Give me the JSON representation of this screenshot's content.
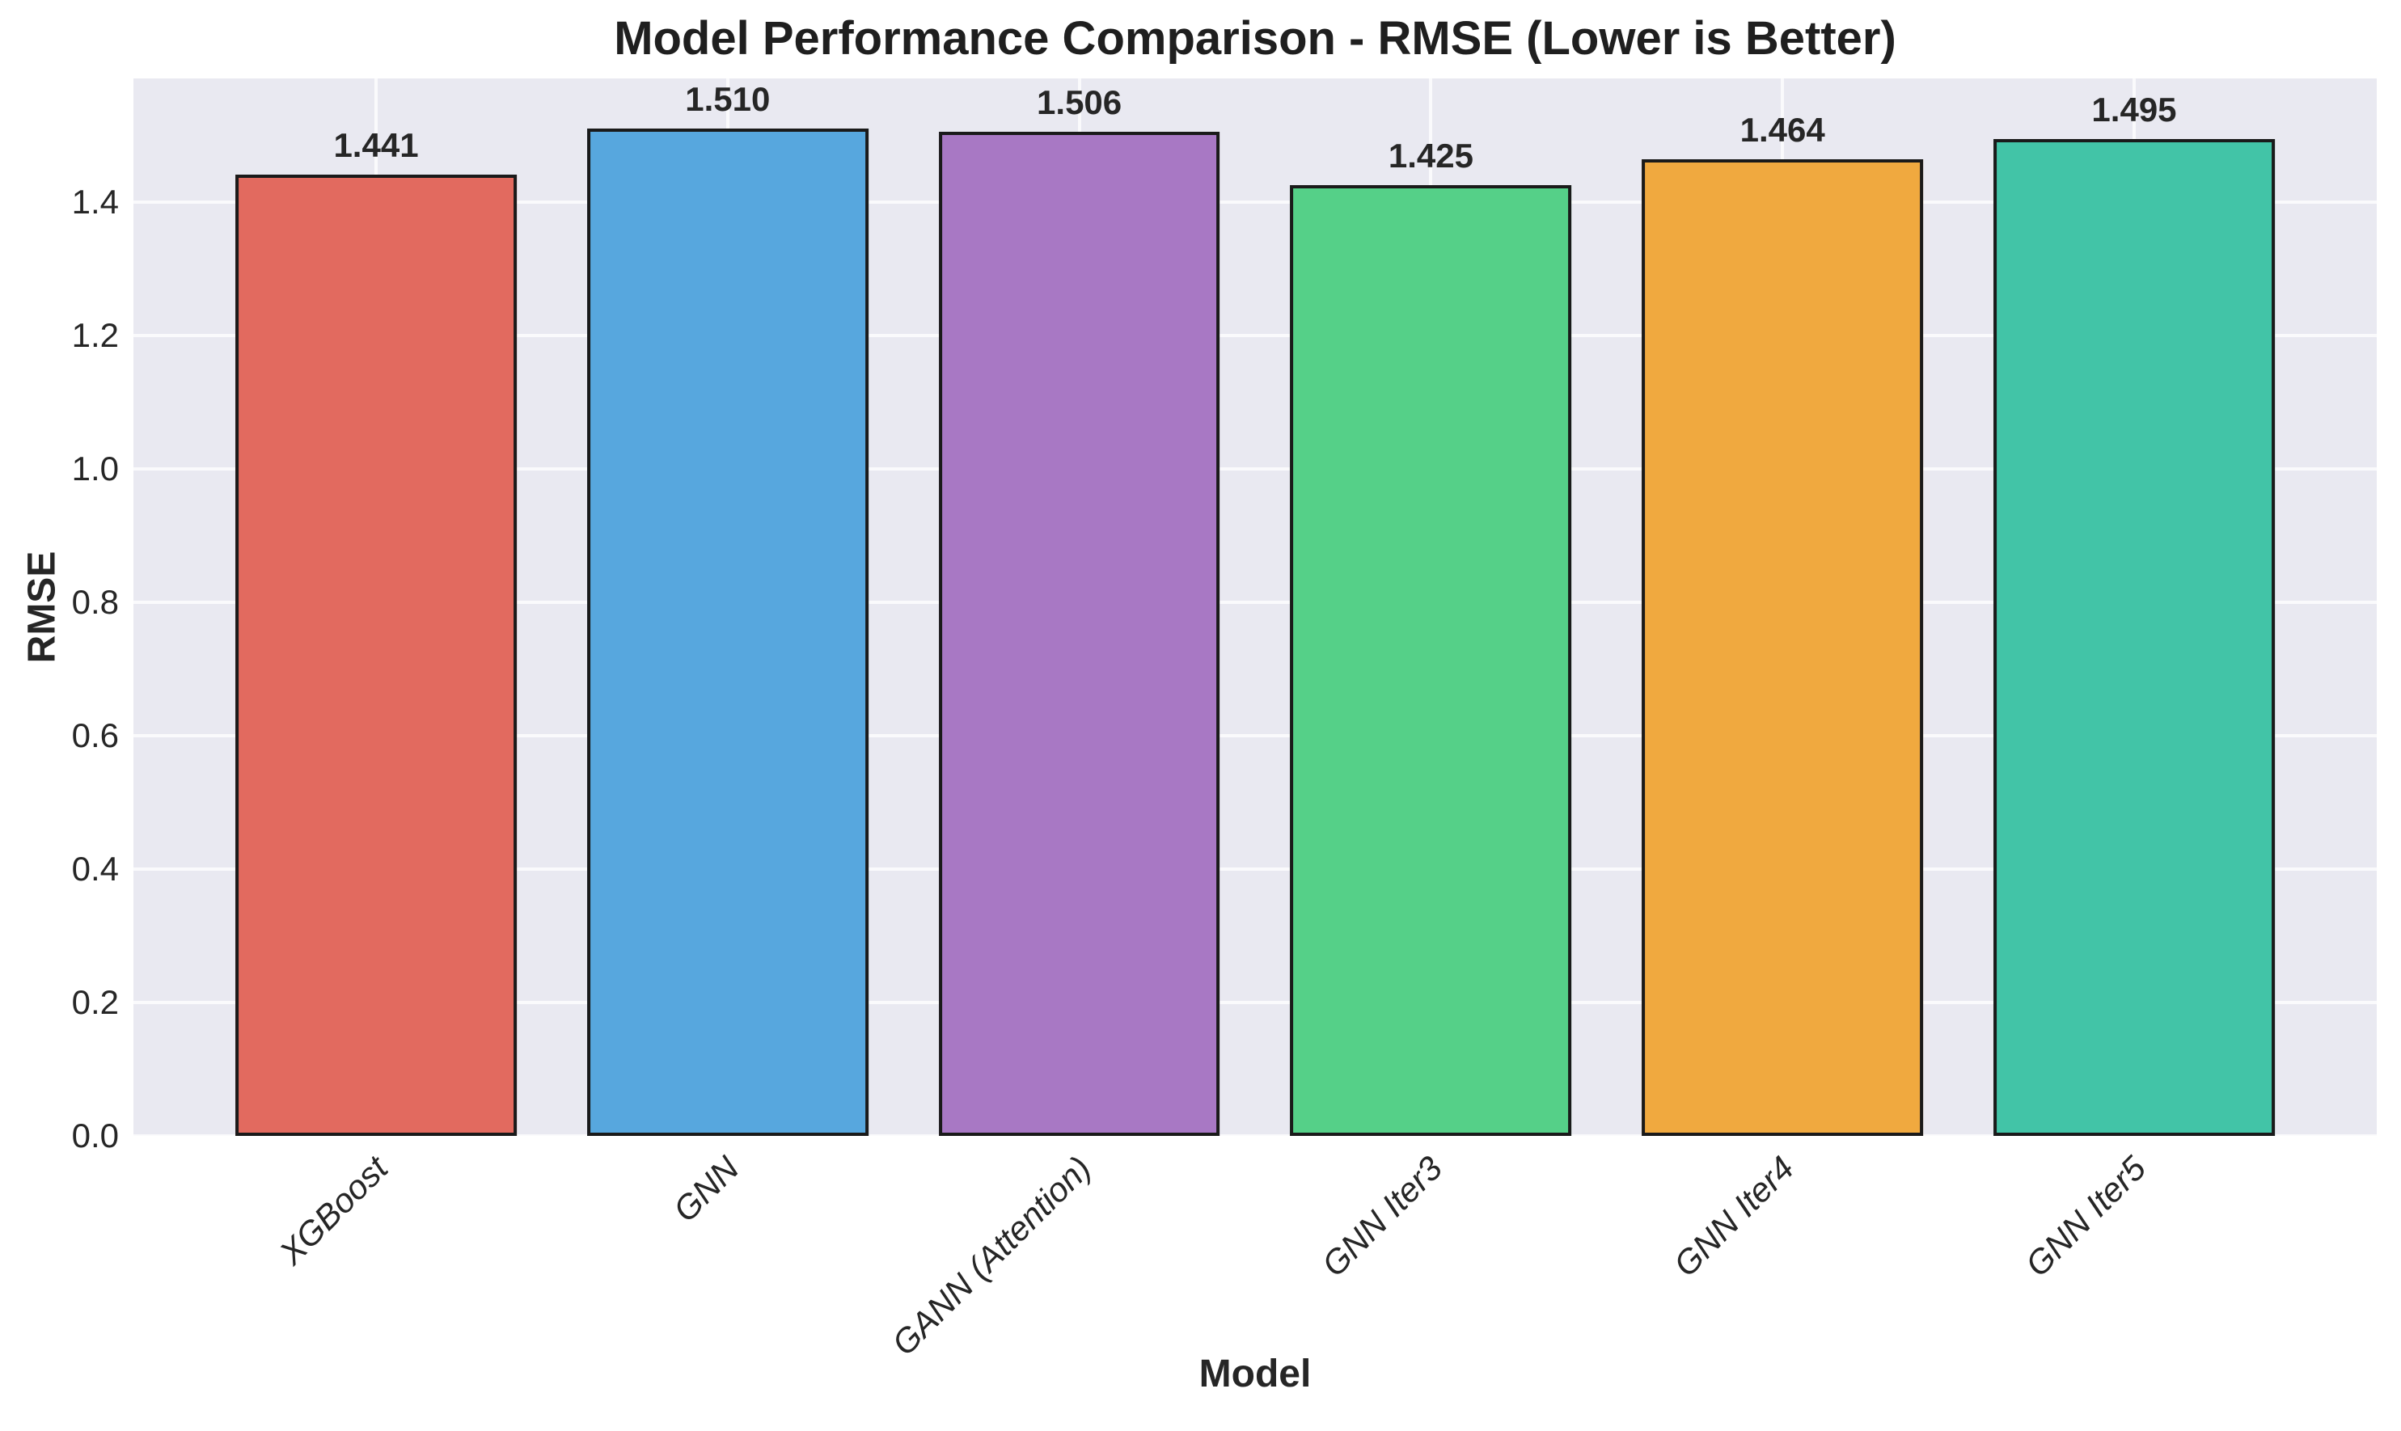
{
  "chart_data": {
    "type": "bar",
    "title": "Model Performance Comparison - RMSE (Lower is Better)",
    "xlabel": "Model",
    "ylabel": "RMSE",
    "categories": [
      "XGBoost",
      "GNN",
      "GANN (Attention)",
      "GNN Iter3",
      "GNN Iter4",
      "GNN Iter5"
    ],
    "values": [
      1.441,
      1.51,
      1.506,
      1.425,
      1.464,
      1.495
    ],
    "bar_value_labels": [
      "1.441",
      "1.510",
      "1.506",
      "1.425",
      "1.464",
      "1.495"
    ],
    "bar_colors": [
      "#e26a5f",
      "#57a7de",
      "#a878c4",
      "#55d088",
      "#f0a93f",
      "#42c4a7"
    ],
    "bar_edge_color": "#1a1a1a",
    "bar_width_units": 0.8,
    "xlim": [
      -0.69,
      5.69
    ],
    "ylim": [
      0,
      1.5855
    ],
    "yticks": [
      0.0,
      0.2,
      0.4,
      0.6,
      0.8,
      1.0,
      1.2,
      1.4
    ],
    "ytick_labels": [
      "0.0",
      "0.2",
      "0.4",
      "0.6",
      "0.8",
      "1.0",
      "1.2",
      "1.4"
    ],
    "grid": true,
    "legend_position": "none",
    "plot_background": "#e9e9f1",
    "grid_color": "#ffffff",
    "text_color": "#262626"
  }
}
